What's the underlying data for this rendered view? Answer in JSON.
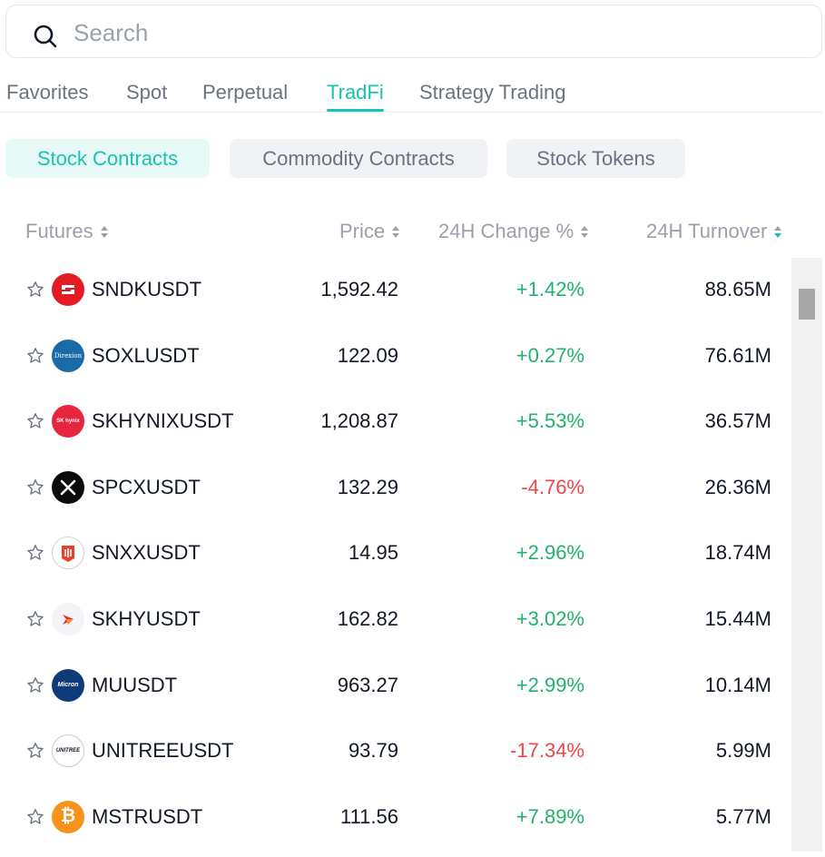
{
  "search": {
    "placeholder": "Search"
  },
  "tabs": [
    {
      "label": "Favorites"
    },
    {
      "label": "Spot"
    },
    {
      "label": "Perpetual"
    },
    {
      "label": "TradFi",
      "active": true
    },
    {
      "label": "Strategy Trading"
    }
  ],
  "subtabs": [
    {
      "label": "Stock Contracts",
      "active": true
    },
    {
      "label": "Commodity Contracts"
    },
    {
      "label": "Stock Tokens"
    }
  ],
  "columns": {
    "futures": "Futures",
    "price": "Price",
    "change": "24H Change %",
    "turnover": "24H Turnover"
  },
  "sort_active_column": "turnover",
  "sort_direction": "descending",
  "colors": {
    "accent": "#17c3b2",
    "positive": "#20b26c",
    "negative": "#ef454a"
  },
  "rows": [
    {
      "symbol": "SNDKUSDT",
      "price": "1,592.42",
      "change": "+1.42%",
      "turnover": "88.65M",
      "logo": "sandisk-logo"
    },
    {
      "symbol": "SOXLUSDT",
      "price": "122.09",
      "change": "+0.27%",
      "turnover": "76.61M",
      "logo": "direxion-logo",
      "logo_text": "Direxion"
    },
    {
      "symbol": "SKHYNIXUSDT",
      "price": "1,208.87",
      "change": "+5.53%",
      "turnover": "36.57M",
      "logo": "sk-hynix-logo",
      "logo_text": "SK hynix"
    },
    {
      "symbol": "SPCXUSDT",
      "price": "132.29",
      "change": "-4.76%",
      "turnover": "26.36M",
      "logo": "spacex-logo"
    },
    {
      "symbol": "SNXXUSDT",
      "price": "14.95",
      "change": "+2.96%",
      "turnover": "18.74M",
      "logo": "snxx-logo"
    },
    {
      "symbol": "SKHYUSDT",
      "price": "162.82",
      "change": "+3.02%",
      "turnover": "15.44M",
      "logo": "sk-logo"
    },
    {
      "symbol": "MUUSDT",
      "price": "963.27",
      "change": "+2.99%",
      "turnover": "10.14M",
      "logo": "micron-logo",
      "logo_text": "Micron"
    },
    {
      "symbol": "UNITREEUSDT",
      "price": "93.79",
      "change": "-17.34%",
      "turnover": "5.99M",
      "logo": "unitree-logo",
      "logo_text": "UNITREE"
    },
    {
      "symbol": "MSTRUSDT",
      "price": "111.56",
      "change": "+7.89%",
      "turnover": "5.77M",
      "logo": "bitcoin-logo",
      "logo_text": "₿"
    }
  ]
}
